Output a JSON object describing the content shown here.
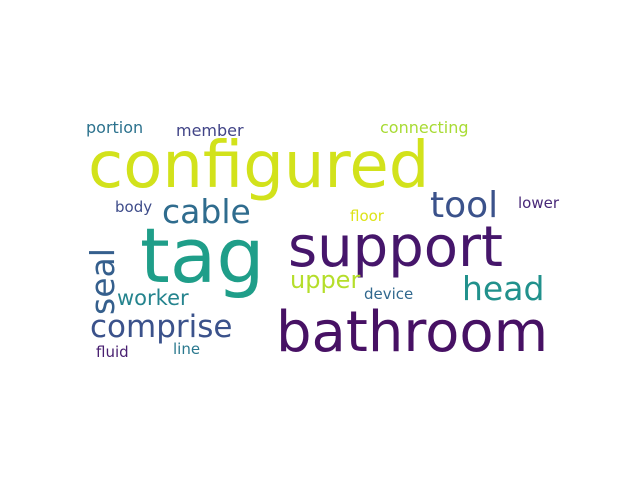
{
  "cloud": {
    "words": [
      {
        "key": "configured",
        "text": "configured",
        "color": "#d2e21b"
      },
      {
        "key": "support",
        "text": "support",
        "color": "#46166b"
      },
      {
        "key": "tag",
        "text": "tag",
        "color": "#1f9e89"
      },
      {
        "key": "bathroom",
        "text": "bathroom",
        "color": "#471164"
      },
      {
        "key": "cable",
        "text": "cable",
        "color": "#2f6c8e"
      },
      {
        "key": "tool",
        "text": "tool",
        "color": "#3b528b"
      },
      {
        "key": "seal",
        "text": "seal",
        "color": "#355f8d"
      },
      {
        "key": "head",
        "text": "head",
        "color": "#21918c"
      },
      {
        "key": "comprise",
        "text": "comprise",
        "color": "#3b528b"
      },
      {
        "key": "upper",
        "text": "upper",
        "color": "#b5de2b"
      },
      {
        "key": "worker",
        "text": "worker",
        "color": "#25848e"
      },
      {
        "key": "portion",
        "text": "portion",
        "color": "#2c728e"
      },
      {
        "key": "member",
        "text": "member",
        "color": "#414487"
      },
      {
        "key": "connecting",
        "text": "connecting",
        "color": "#a8db34"
      },
      {
        "key": "body",
        "text": "body",
        "color": "#3e4c8a"
      },
      {
        "key": "floor",
        "text": "floor",
        "color": "#dde318"
      },
      {
        "key": "lower",
        "text": "lower",
        "color": "#482878"
      },
      {
        "key": "device",
        "text": "device",
        "color": "#31688e"
      },
      {
        "key": "fluid",
        "text": "fluid",
        "color": "#481f70"
      },
      {
        "key": "line",
        "text": "line",
        "color": "#2a788e"
      }
    ]
  }
}
